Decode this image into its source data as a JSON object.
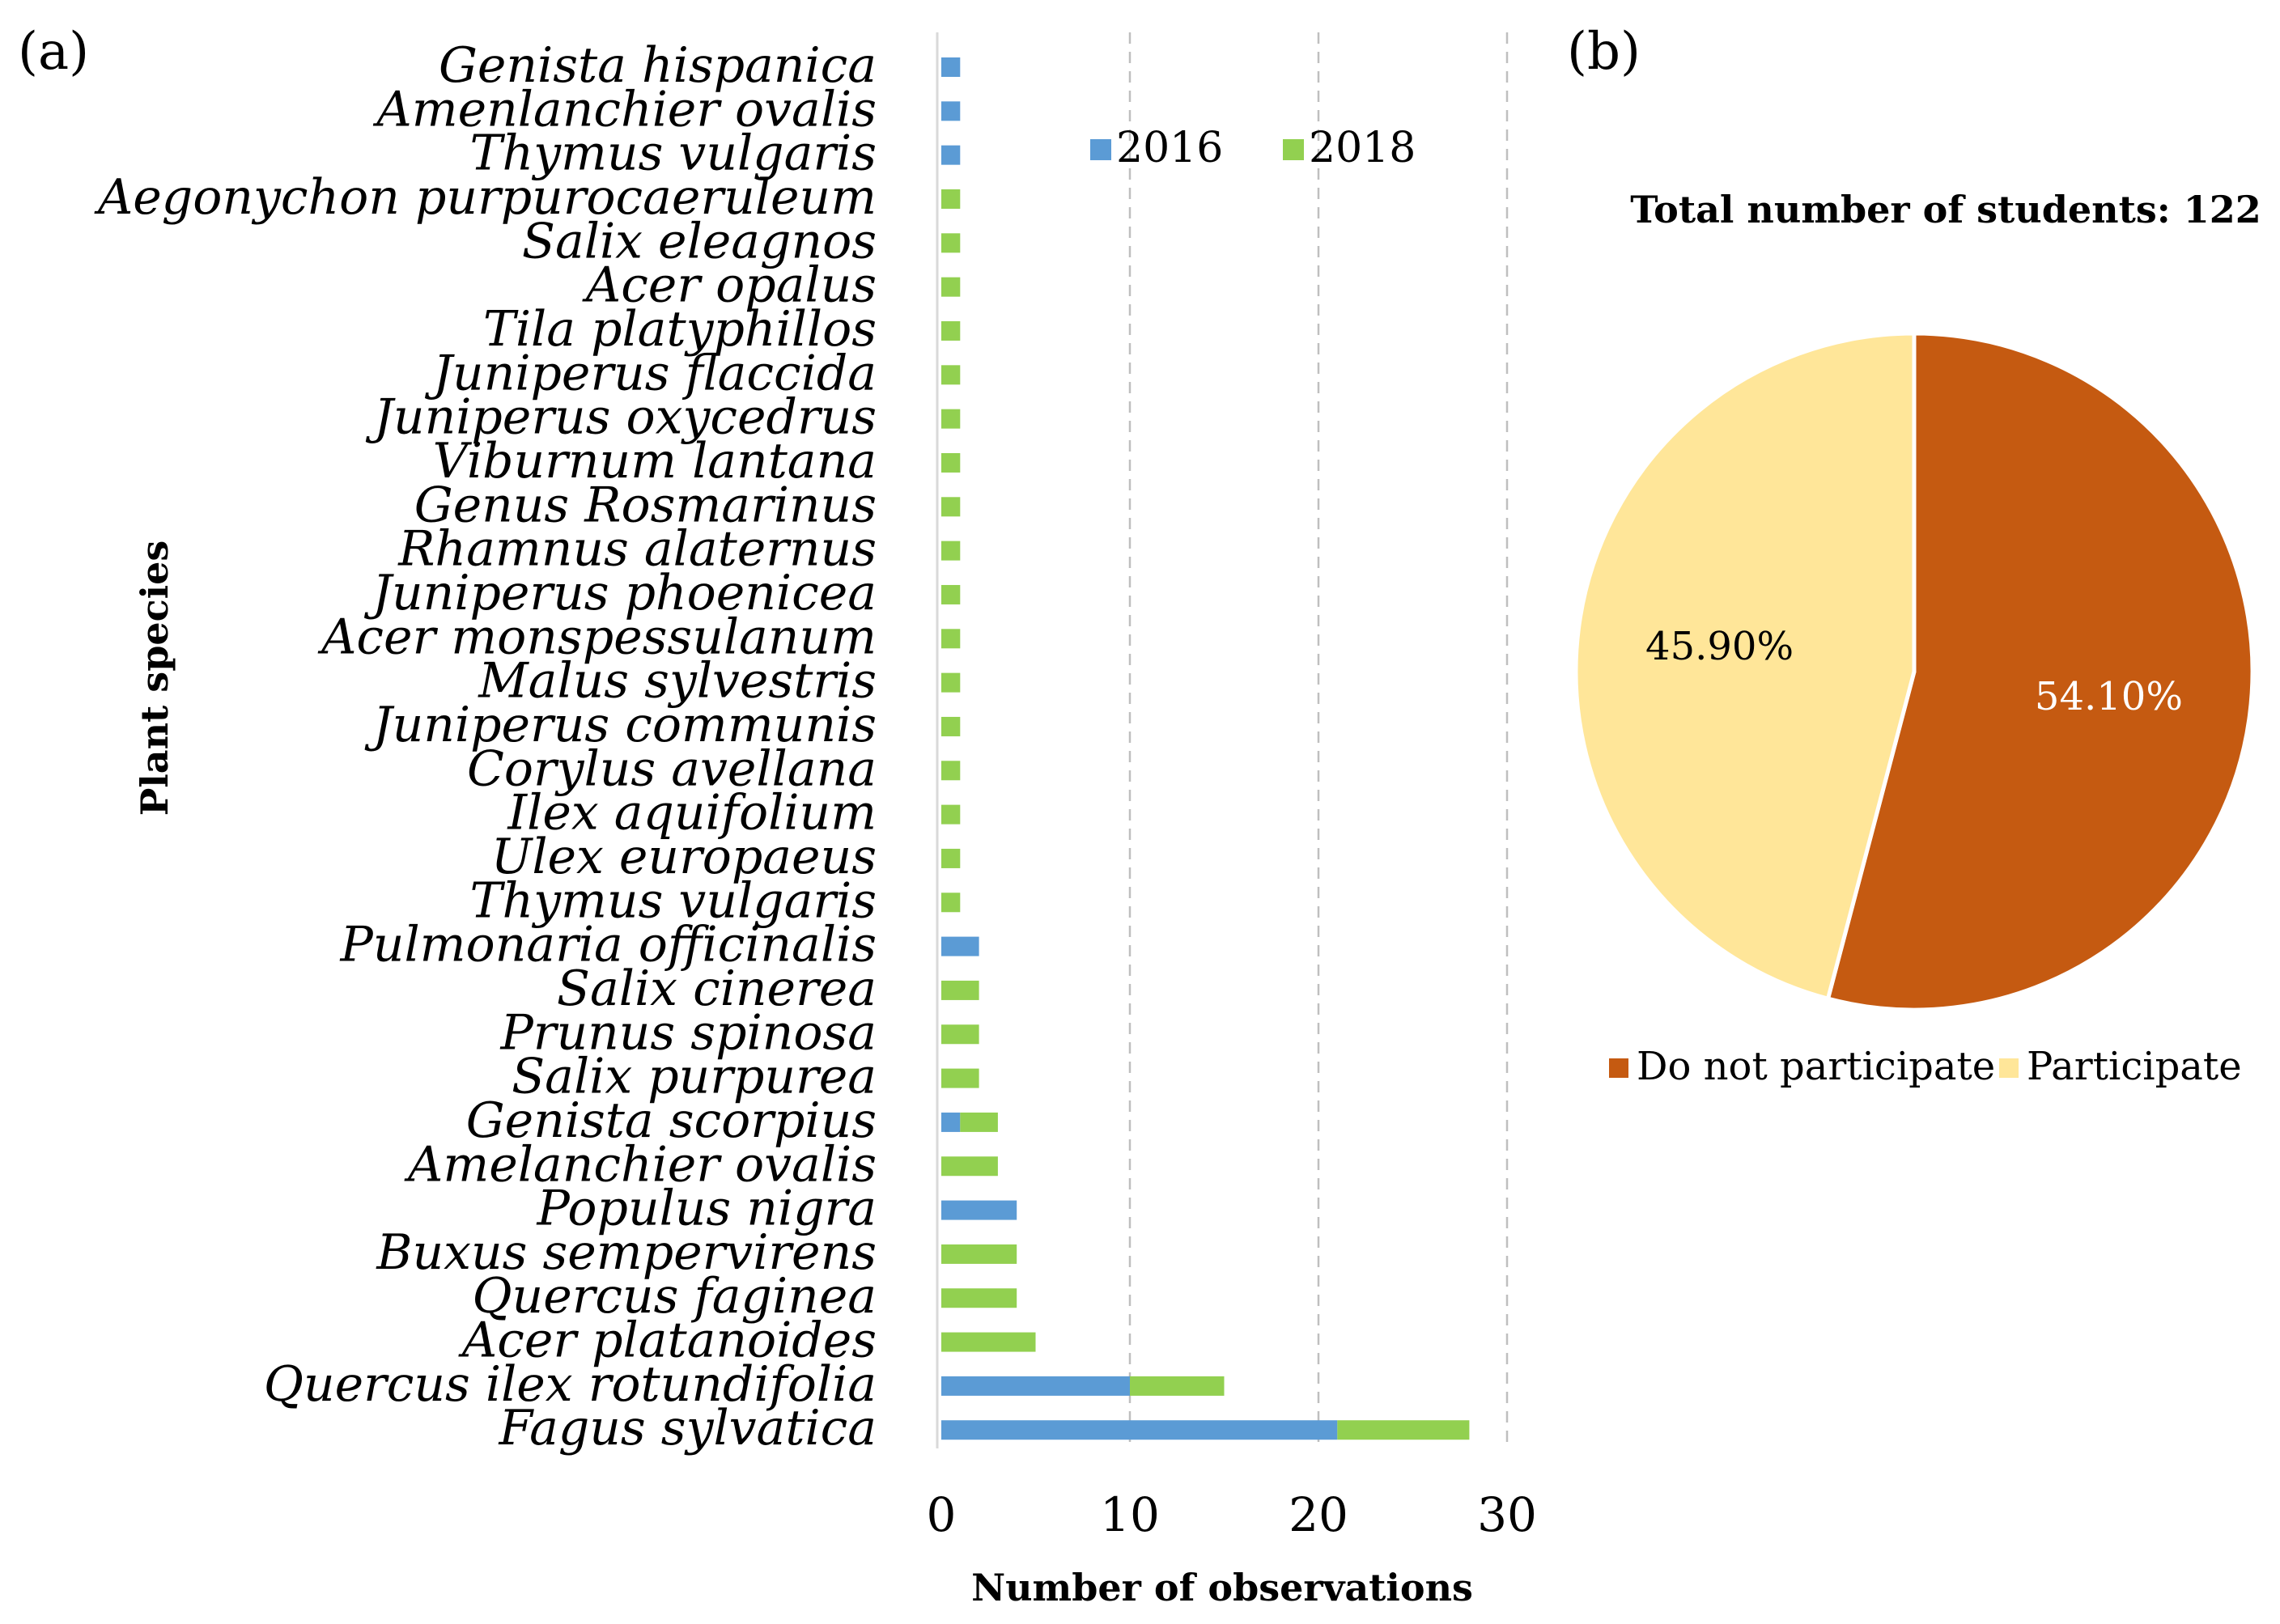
{
  "chart_data": [
    {
      "panel": "(a)",
      "type": "bar",
      "orientation": "horizontal",
      "stacked": true,
      "ylabel": "Plant species",
      "xlabel": "Number of observations",
      "xlim": [
        0,
        30
      ],
      "xticks": [
        0,
        10,
        20,
        30
      ],
      "grid": "vertical dashed",
      "legend_position": "top-right",
      "categories": [
        "Genista hispanica",
        "Amenlanchier ovalis",
        "Thymus vulgaris",
        "Aegonychon purpurocaeruleum",
        "Salix eleagnos",
        "Acer opalus",
        "Tila platyphillos",
        "Juniperus flaccida",
        "Juniperus oxycedrus",
        "Viburnum lantana",
        "Genus Rosmarinus",
        "Rhamnus alaternus",
        "Juniperus phoenicea",
        "Acer monspessulanum",
        "Malus sylvestris",
        "Juniperus communis",
        "Corylus avellana",
        "Ilex aquifolium",
        "Ulex europaeus",
        "Thymus vulgaris",
        "Pulmonaria officinalis",
        "Salix cinerea",
        "Prunus spinosa",
        "Salix purpurea",
        "Genista scorpius",
        "Amelanchier ovalis",
        "Populus nigra",
        "Buxus sempervirens",
        "Quercus faginea",
        "Acer platanoides",
        "Quercus ilex rotundifolia",
        "Fagus sylvatica"
      ],
      "series": [
        {
          "name": "2016",
          "color": "#5b9bd5",
          "values": [
            1,
            1,
            1,
            0,
            0,
            0,
            0,
            0,
            0,
            0,
            0,
            0,
            0,
            0,
            0,
            0,
            0,
            0,
            0,
            0,
            2,
            0,
            0,
            0,
            1,
            0,
            4,
            0,
            0,
            0,
            10,
            21
          ]
        },
        {
          "name": "2018",
          "color": "#92d050",
          "values": [
            0,
            0,
            0,
            1,
            1,
            1,
            1,
            1,
            1,
            1,
            1,
            1,
            1,
            1,
            1,
            1,
            1,
            1,
            1,
            1,
            0,
            2,
            2,
            2,
            2,
            3,
            0,
            4,
            4,
            5,
            5,
            7
          ]
        }
      ]
    },
    {
      "panel": "(b)",
      "type": "pie",
      "title": "Total number of students: 122",
      "legend_position": "bottom",
      "slices": [
        {
          "label": "Do not participate",
          "value": 54.1,
          "display": "54.10%",
          "color": "#c55a11",
          "label_color": "#ffffff"
        },
        {
          "label": "Participate",
          "value": 45.9,
          "display": "45.90%",
          "color": "#ffe699",
          "label_color": "#000000"
        }
      ]
    }
  ]
}
